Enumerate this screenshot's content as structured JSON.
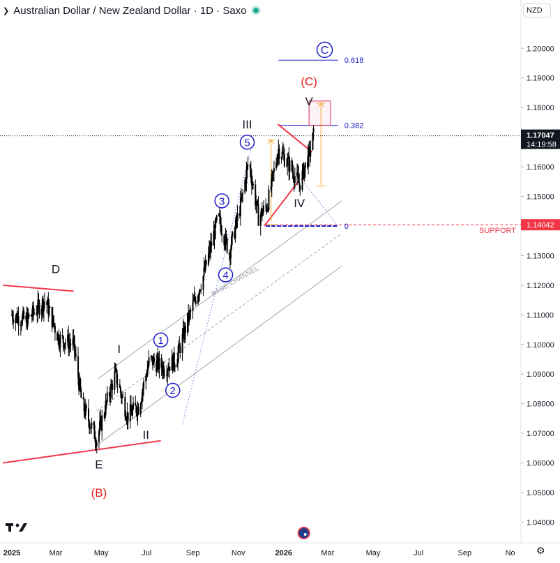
{
  "header": {
    "title": "Australian Dollar / New Zealand Dollar · 1D · Saxo",
    "currency": "NZD"
  },
  "colors": {
    "candle": "#000000",
    "wave_blue": "#1a1ac8",
    "label_red": "#e51b1b",
    "trendline_red": "#f0384b",
    "fib_orange": "#f5a623",
    "channel_gray": "#a0a4ab",
    "price_badge": "#131722",
    "support_badge": "#f23645",
    "live_dot": "#22ab94"
  },
  "chart_data": {
    "type": "candlestick",
    "symbol": "AUDNZD",
    "timeframe": "1D",
    "x_axis": {
      "tick_labels": [
        "2025",
        "Mar",
        "May",
        "Jul",
        "Sep",
        "Nov",
        "2026",
        "Mar",
        "May",
        "Jul",
        "Sep",
        "No"
      ]
    },
    "y_axis": {
      "range": [
        1.035,
        1.2145
      ],
      "tick_values": [
        1.04,
        1.05,
        1.06,
        1.07,
        1.08,
        1.09,
        1.1,
        1.11,
        1.12,
        1.13,
        1.14,
        1.15,
        1.16,
        1.17,
        1.18,
        1.19,
        1.2
      ],
      "tick_labels": [
        "1.04000",
        "1.05000",
        "1.06000",
        "1.07000",
        "1.08000",
        "1.09000",
        "1.10000",
        "1.11000",
        "1.12000",
        "1.13000",
        "1.14000",
        "1.15000",
        "1.16000",
        "1.17000",
        "1.18000",
        "1.19000",
        "1.20000"
      ]
    },
    "price_path_keypoints": [
      {
        "date": "2025-01-01",
        "close": 1.11
      },
      {
        "date": "2025-01-20",
        "close": 1.108
      },
      {
        "date": "2025-02-15",
        "close": 1.115
      },
      {
        "date": "2025-03-05",
        "close": 1.102
      },
      {
        "date": "2025-03-25",
        "close": 1.1
      },
      {
        "date": "2025-04-05",
        "close": 1.08
      },
      {
        "date": "2025-04-25",
        "close": 1.068
      },
      {
        "date": "2025-05-10",
        "close": 1.082
      },
      {
        "date": "2025-05-20",
        "close": 1.09
      },
      {
        "date": "2025-06-05",
        "close": 1.076
      },
      {
        "date": "2025-06-20",
        "close": 1.079
      },
      {
        "date": "2025-07-05",
        "close": 1.095
      },
      {
        "date": "2025-07-25",
        "close": 1.092
      },
      {
        "date": "2025-08-10",
        "close": 1.095
      },
      {
        "date": "2025-08-25",
        "close": 1.108
      },
      {
        "date": "2025-09-15",
        "close": 1.123
      },
      {
        "date": "2025-10-05",
        "close": 1.143
      },
      {
        "date": "2025-10-20",
        "close": 1.131
      },
      {
        "date": "2025-11-05",
        "close": 1.148
      },
      {
        "date": "2025-11-15",
        "close": 1.162
      },
      {
        "date": "2025-11-28",
        "close": 1.143
      },
      {
        "date": "2025-12-10",
        "close": 1.147
      },
      {
        "date": "2025-12-25",
        "close": 1.166
      },
      {
        "date": "2026-01-10",
        "close": 1.16
      },
      {
        "date": "2026-01-22",
        "close": 1.154
      },
      {
        "date": "2026-02-05",
        "close": 1.165
      },
      {
        "date": "2026-02-10",
        "close": 1.1705
      }
    ],
    "last_price": {
      "value": 1.17047,
      "label": "1.17047",
      "countdown": "14:19:58"
    },
    "support": {
      "value": 1.14042,
      "label": "1.14042",
      "text": "SUPPORT"
    },
    "fibonacci": [
      {
        "level": "0.618",
        "value": 1.196
      },
      {
        "level": "0.382",
        "value": 1.174
      },
      {
        "level": "0",
        "value": 1.14
      }
    ],
    "channel_label": "BASE CHANNEL",
    "wave_labels": [
      {
        "text": "D",
        "date": "2025-03-01",
        "price": 1.1255,
        "color": "black",
        "style": "plain"
      },
      {
        "text": "E",
        "date": "2025-04-28",
        "price": 1.0595,
        "color": "black",
        "style": "plain"
      },
      {
        "text": "(B)",
        "date": "2025-04-28",
        "price": 1.05,
        "color": "red",
        "style": "plain"
      },
      {
        "text": "I",
        "date": "2025-05-25",
        "price": 1.0985,
        "color": "black",
        "style": "plain"
      },
      {
        "text": "II",
        "date": "2025-06-30",
        "price": 1.0695,
        "color": "black",
        "style": "plain"
      },
      {
        "text": "1",
        "date": "2025-07-20",
        "price": 1.1015,
        "color": "blue",
        "style": "circle"
      },
      {
        "text": "2",
        "date": "2025-08-05",
        "price": 1.0845,
        "color": "blue",
        "style": "circle"
      },
      {
        "text": "3",
        "date": "2025-10-10",
        "price": 1.1485,
        "color": "blue",
        "style": "circle"
      },
      {
        "text": "4",
        "date": "2025-10-15",
        "price": 1.1235,
        "color": "blue",
        "style": "circle"
      },
      {
        "text": "5",
        "date": "2025-11-13",
        "price": 1.1683,
        "color": "blue",
        "style": "circle"
      },
      {
        "text": "III",
        "date": "2025-11-13",
        "price": 1.1744,
        "color": "black",
        "style": "plain"
      },
      {
        "text": "IV",
        "date": "2026-01-22",
        "price": 1.1478,
        "color": "black",
        "style": "plain"
      },
      {
        "text": "V",
        "date": "2026-02-04",
        "price": 1.1822,
        "color": "black",
        "style": "plain"
      },
      {
        "text": "(C)",
        "date": "2026-02-04",
        "price": 1.1889,
        "color": "red",
        "style": "plain"
      },
      {
        "text": "C",
        "date": "2026-02-25",
        "price": 1.1995,
        "color": "blue",
        "style": "circle"
      }
    ]
  }
}
